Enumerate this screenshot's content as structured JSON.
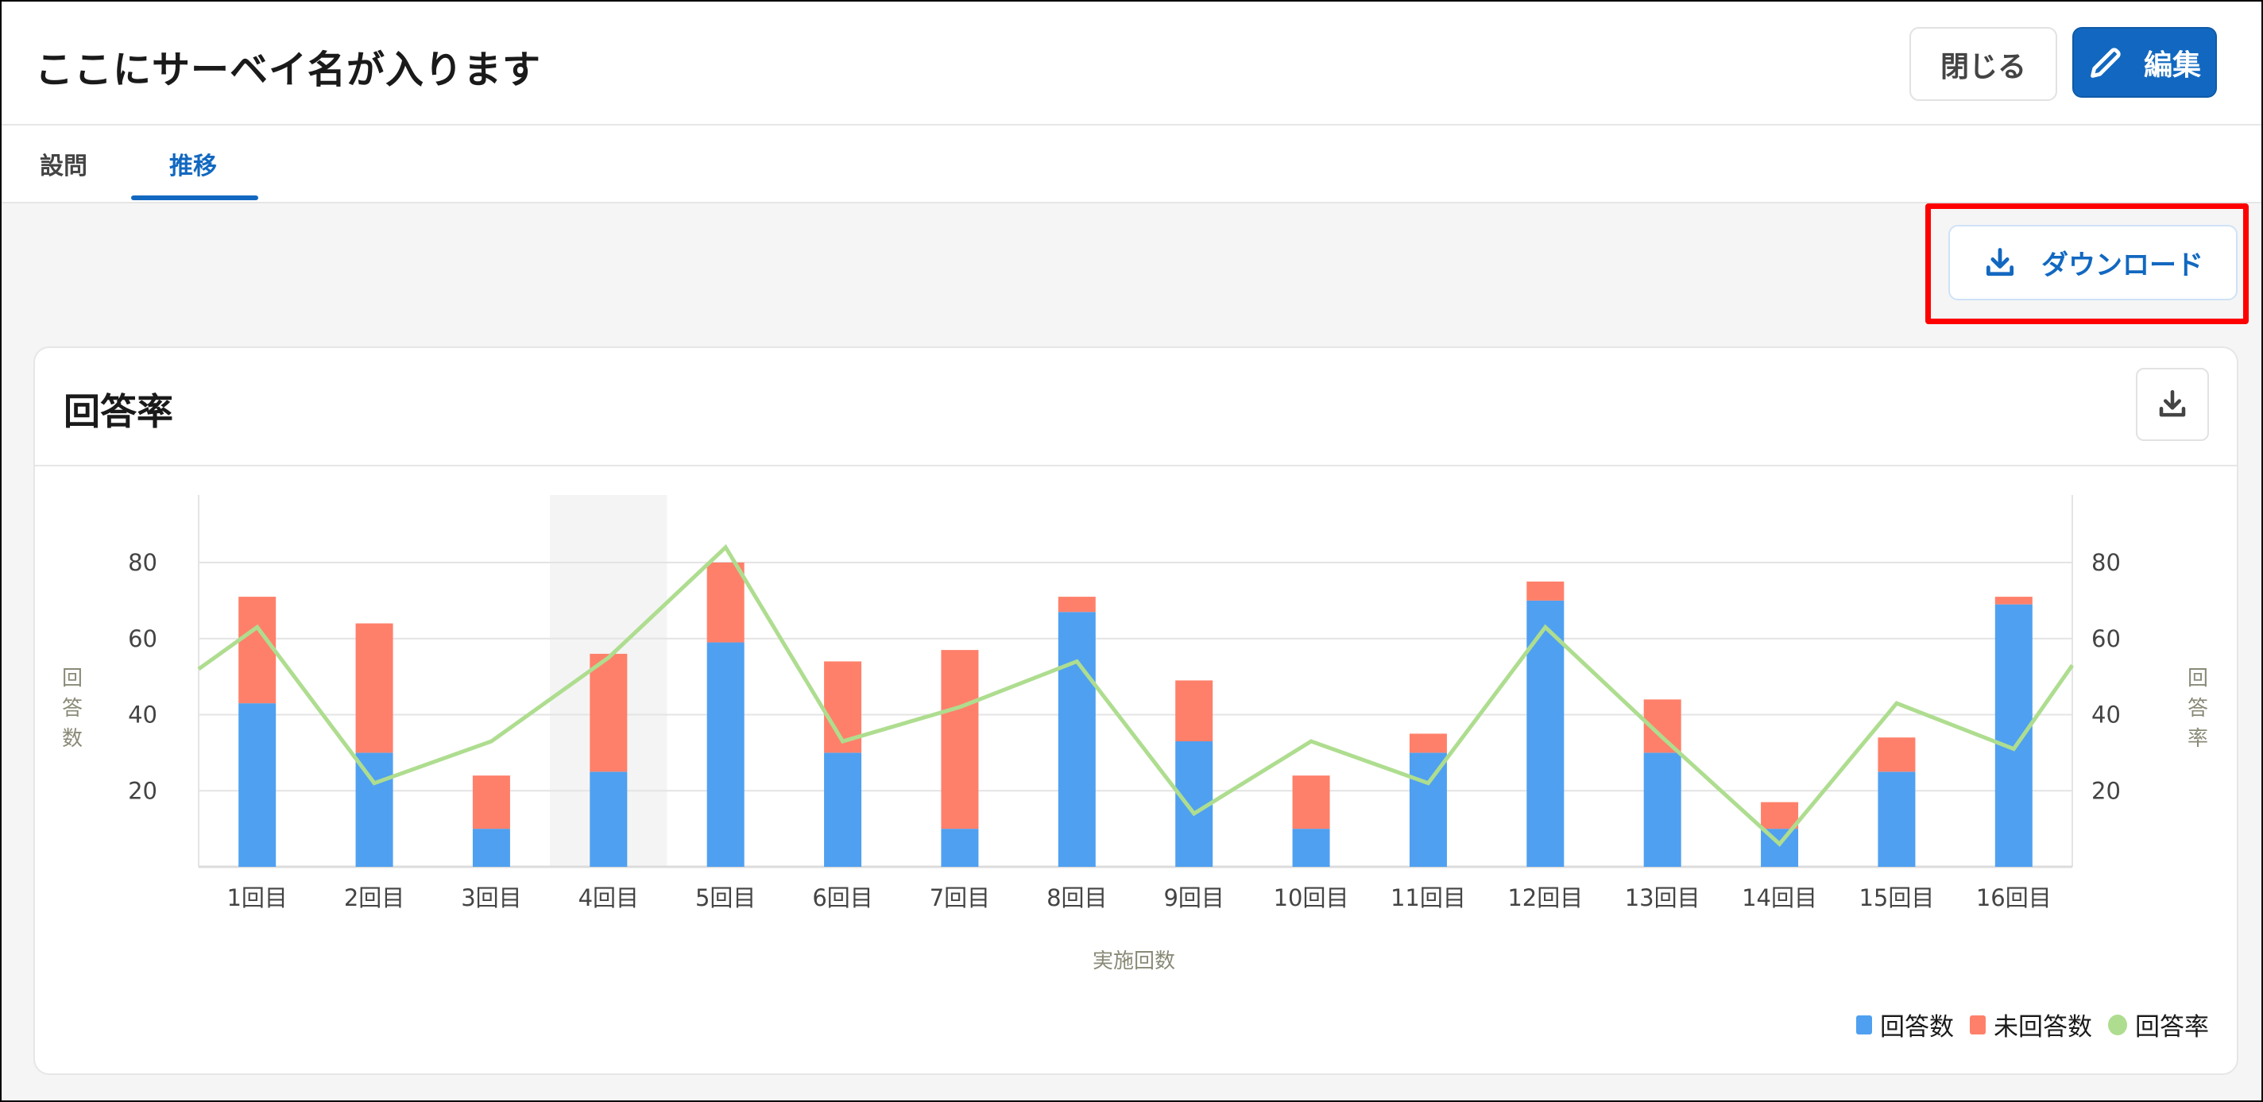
{
  "header": {
    "title": "ここにサーベイ名が入ります",
    "close_label": "閉じる",
    "edit_label": "編集",
    "edit_icon": "pencil-icon"
  },
  "tabs": [
    {
      "label": "設問",
      "active": false
    },
    {
      "label": "推移",
      "active": true
    }
  ],
  "toolbar": {
    "download_label": "ダウンロード",
    "download_icon": "download-icon",
    "highlight_color": "#ff0000"
  },
  "card": {
    "title": "回答率",
    "download_icon": "download-icon"
  },
  "colors": {
    "accent": "#1268c0",
    "answered": "#4fa0f0",
    "unanswered": "#ff806a",
    "rate": "#aedd8f"
  },
  "chart_data": {
    "type": "bar",
    "stacked": true,
    "categories": [
      "1回目",
      "2回目",
      "3回目",
      "4回目",
      "5回目",
      "6回目",
      "7回目",
      "8回目",
      "9回目",
      "10回目",
      "11回目",
      "12回目",
      "13回目",
      "14回目",
      "15回目",
      "16回目"
    ],
    "series": [
      {
        "name": "回答数",
        "type": "bar",
        "axis": "left",
        "values": [
          43,
          30,
          10,
          25,
          59,
          30,
          10,
          67,
          33,
          10,
          30,
          70,
          30,
          10,
          25,
          69
        ]
      },
      {
        "name": "未回答数",
        "type": "bar",
        "axis": "left",
        "values": [
          28,
          34,
          14,
          31,
          21,
          24,
          47,
          4,
          16,
          14,
          5,
          5,
          14,
          7,
          9,
          2
        ]
      },
      {
        "name": "回答率",
        "type": "line",
        "axis": "right",
        "values": [
          63,
          22,
          33,
          55,
          84,
          33,
          42,
          54,
          14,
          33,
          22,
          63,
          34,
          6,
          43,
          31
        ],
        "left_edge_value": 52,
        "right_edge_value": 53
      }
    ],
    "xlabel": "実施回数",
    "ylabel": "回答数",
    "y2label": "回答率",
    "ylim": [
      0,
      95
    ],
    "y2lim": [
      0,
      95
    ],
    "yticks": [
      20,
      40,
      60,
      80
    ],
    "y2ticks": [
      20,
      40,
      60,
      80
    ],
    "highlighted_category": "4回目",
    "grid": true,
    "legend": "bottom-right"
  }
}
